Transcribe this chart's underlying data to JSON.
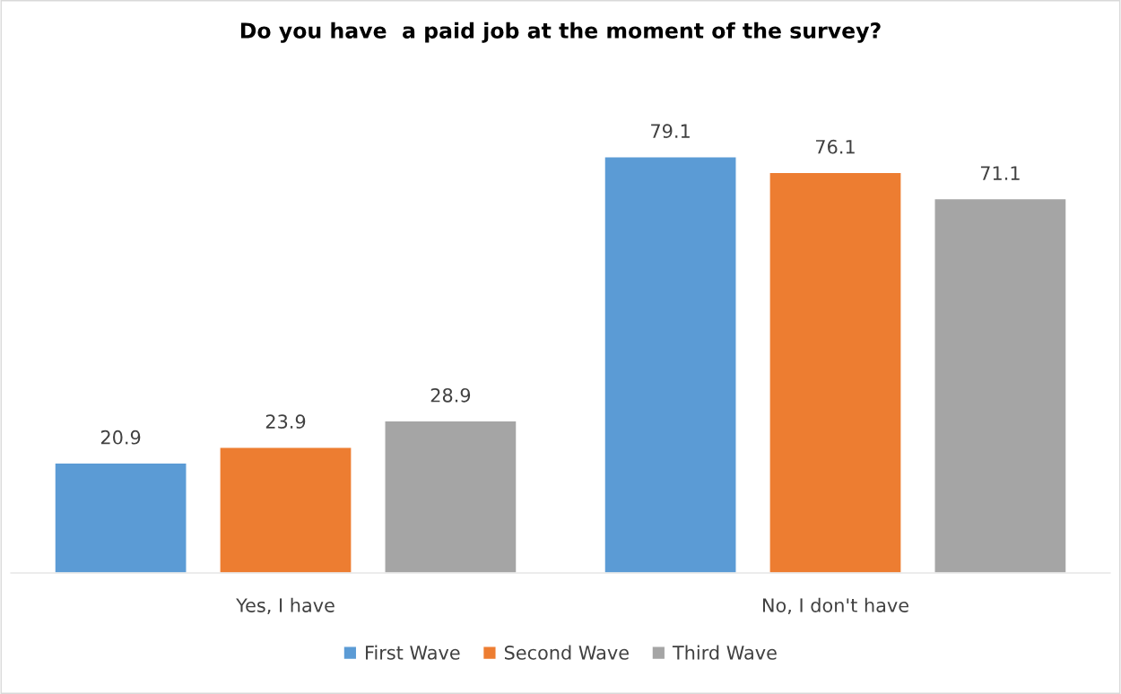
{
  "chart_data": {
    "type": "bar",
    "title": "Do you have  a paid job at the moment of the survey?",
    "categories": [
      "Yes, I have",
      "No, I don't have"
    ],
    "series": [
      {
        "name": "First Wave",
        "color": "#5b9bd5",
        "values": [
          20.9,
          79.1
        ]
      },
      {
        "name": "Second Wave",
        "color": "#ed7d31",
        "values": [
          23.9,
          76.1
        ]
      },
      {
        "name": "Third Wave",
        "color": "#a5a5a5",
        "values": [
          28.9,
          71.1
        ]
      }
    ],
    "data_labels": true,
    "legend": "bottom"
  }
}
